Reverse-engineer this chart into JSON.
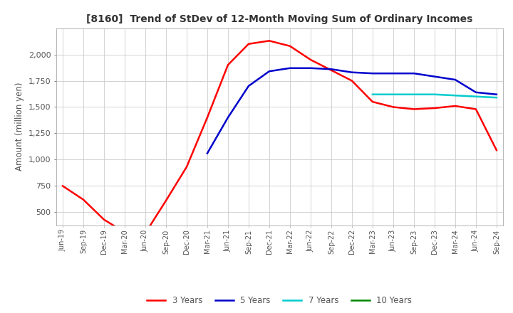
{
  "title": "[8160]  Trend of StDev of 12-Month Moving Sum of Ordinary Incomes",
  "ylabel": "Amount (million yen)",
  "background_color": "#ffffff",
  "grid_color": "#cccccc",
  "ylim": [
    375,
    2250
  ],
  "yticks": [
    500,
    750,
    1000,
    1250,
    1500,
    1750,
    2000
  ],
  "x_labels": [
    "Jun-19",
    "Sep-19",
    "Dec-19",
    "Mar-20",
    "Jun-20",
    "Sep-20",
    "Dec-20",
    "Mar-21",
    "Jun-21",
    "Sep-21",
    "Dec-21",
    "Mar-22",
    "Jun-22",
    "Sep-22",
    "Dec-22",
    "Mar-23",
    "Jun-23",
    "Sep-23",
    "Dec-23",
    "Mar-24",
    "Jun-24",
    "Sep-24"
  ],
  "series": {
    "3 Years": {
      "color": "#ff0000",
      "values": [
        750,
        620,
        430,
        310,
        300,
        610,
        930,
        1400,
        1900,
        2100,
        2130,
        2080,
        1950,
        1850,
        1750,
        1550,
        1500,
        1480,
        1490,
        1510,
        1480,
        1090
      ]
    },
    "5 Years": {
      "color": "#0000cc",
      "values": [
        null,
        null,
        null,
        null,
        null,
        null,
        null,
        1060,
        1400,
        1700,
        1840,
        1870,
        1870,
        1860,
        1830,
        1820,
        1820,
        1820,
        1790,
        1760,
        1640,
        1620
      ]
    },
    "7 Years": {
      "color": "#00cccc",
      "values": [
        null,
        null,
        null,
        null,
        null,
        null,
        null,
        null,
        null,
        null,
        null,
        null,
        null,
        null,
        null,
        1620,
        1620,
        1620,
        1620,
        1610,
        1600,
        1590
      ]
    },
    "10 Years": {
      "color": "#008800",
      "values": [
        null,
        null,
        null,
        null,
        null,
        null,
        null,
        null,
        null,
        null,
        null,
        null,
        null,
        null,
        null,
        null,
        null,
        null,
        null,
        null,
        null,
        null
      ]
    }
  },
  "legend_order": [
    "3 Years",
    "5 Years",
    "7 Years",
    "10 Years"
  ]
}
